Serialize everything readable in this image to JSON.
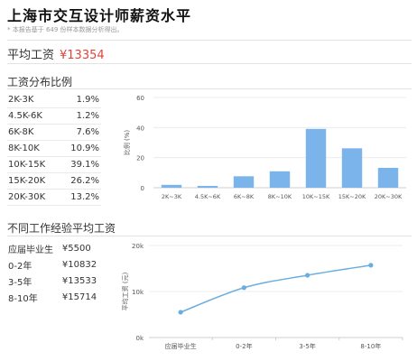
{
  "page": {
    "title": "上海市交互设计师薪资水平",
    "subtitle": "* 本报告基于 649 份样本数据分析得出。",
    "avg_label": "平均工资",
    "avg_value": "¥13354",
    "dist_title": "工资分布比例",
    "exp_title": "不同工作经验平均工资"
  },
  "dist_table": [
    {
      "range": "2K-3K",
      "pct": "1.9%"
    },
    {
      "range": "4.5K-6K",
      "pct": "1.2%"
    },
    {
      "range": "6K-8K",
      "pct": "7.6%"
    },
    {
      "range": "8K-10K",
      "pct": "10.9%"
    },
    {
      "range": "10K-15K",
      "pct": "39.1%"
    },
    {
      "range": "15K-20K",
      "pct": "26.2%"
    },
    {
      "range": "20K-30K",
      "pct": "13.2%"
    }
  ],
  "exp_table": [
    {
      "label": "应届毕业生",
      "value": "¥5500"
    },
    {
      "label": "0-2年",
      "value": "¥10832"
    },
    {
      "label": "3-5年",
      "value": "¥13533"
    },
    {
      "label": "8-10年",
      "value": "¥15714"
    }
  ],
  "chart_data": [
    {
      "type": "bar",
      "categories": [
        "2K~3K",
        "4.5K~6K",
        "6K~8K",
        "8K~10K",
        "10K~15K",
        "15K~20K",
        "20K~30K"
      ],
      "values": [
        1.9,
        1.2,
        7.6,
        10.9,
        39.1,
        26.2,
        13.2
      ],
      "ylabel": "比例 (%)",
      "ylim": [
        0,
        60
      ],
      "yticks": [
        "0",
        "20",
        "40",
        "60"
      ],
      "grid": true,
      "color": "#7ab4ea"
    },
    {
      "type": "line",
      "categories": [
        "应届毕业生",
        "0-2年",
        "3-5年",
        "8-10年"
      ],
      "values": [
        5500,
        10832,
        13533,
        15714
      ],
      "ylabel": "平均工资 (元)",
      "ylim": [
        0,
        20000
      ],
      "yticks": [
        "0k",
        "10k",
        "20k"
      ],
      "grid": true,
      "color": "#6aaee0"
    }
  ]
}
